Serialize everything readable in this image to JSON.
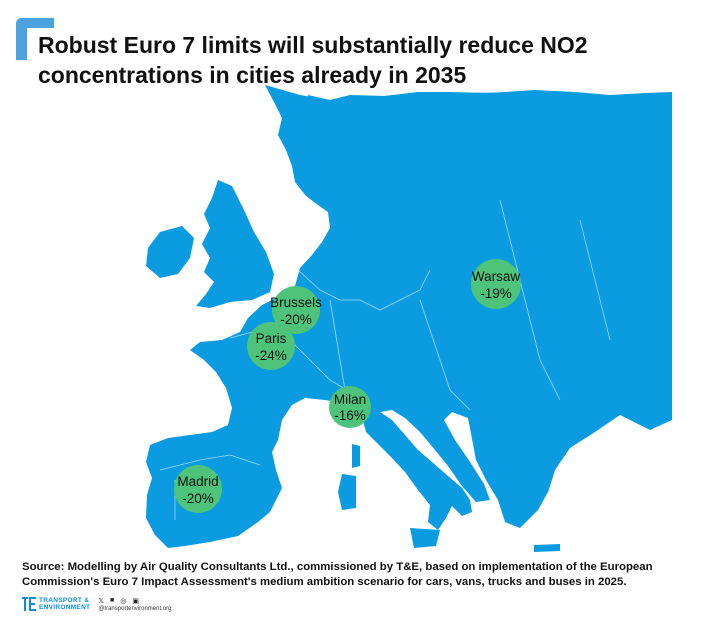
{
  "title_line1": "Robust Euro 7 limits will substantially reduce NO2",
  "title_line2": "concentrations in cities already in 2035",
  "cities": [
    {
      "name": "Brussels",
      "change": "-20%"
    },
    {
      "name": "Paris",
      "change": "-24%"
    },
    {
      "name": "Warsaw",
      "change": "-19%"
    },
    {
      "name": "Milan",
      "change": "-16%"
    },
    {
      "name": "Madrid",
      "change": "-20%"
    }
  ],
  "source_line1": "Source: Modelling by Air Quality Consultants Ltd., commissioned by T&E, based on implementation of the European",
  "source_line2": "Commission's Euro 7 Impact Assessment's medium ambition scenario for cars, vans, trucks and buses in 2025.",
  "logo": {
    "line1": "TRANSPORT &",
    "line2": "ENVIRONMENT"
  },
  "social": {
    "icons": [
      "twitter-icon",
      "facebook-icon",
      "instagram-icon",
      "linkedin-icon"
    ],
    "handle": "@transportenvironment.org"
  },
  "colors": {
    "map_fill": "#0a9be0",
    "city_circle": "#4ec47a",
    "background": "#ffffff"
  }
}
